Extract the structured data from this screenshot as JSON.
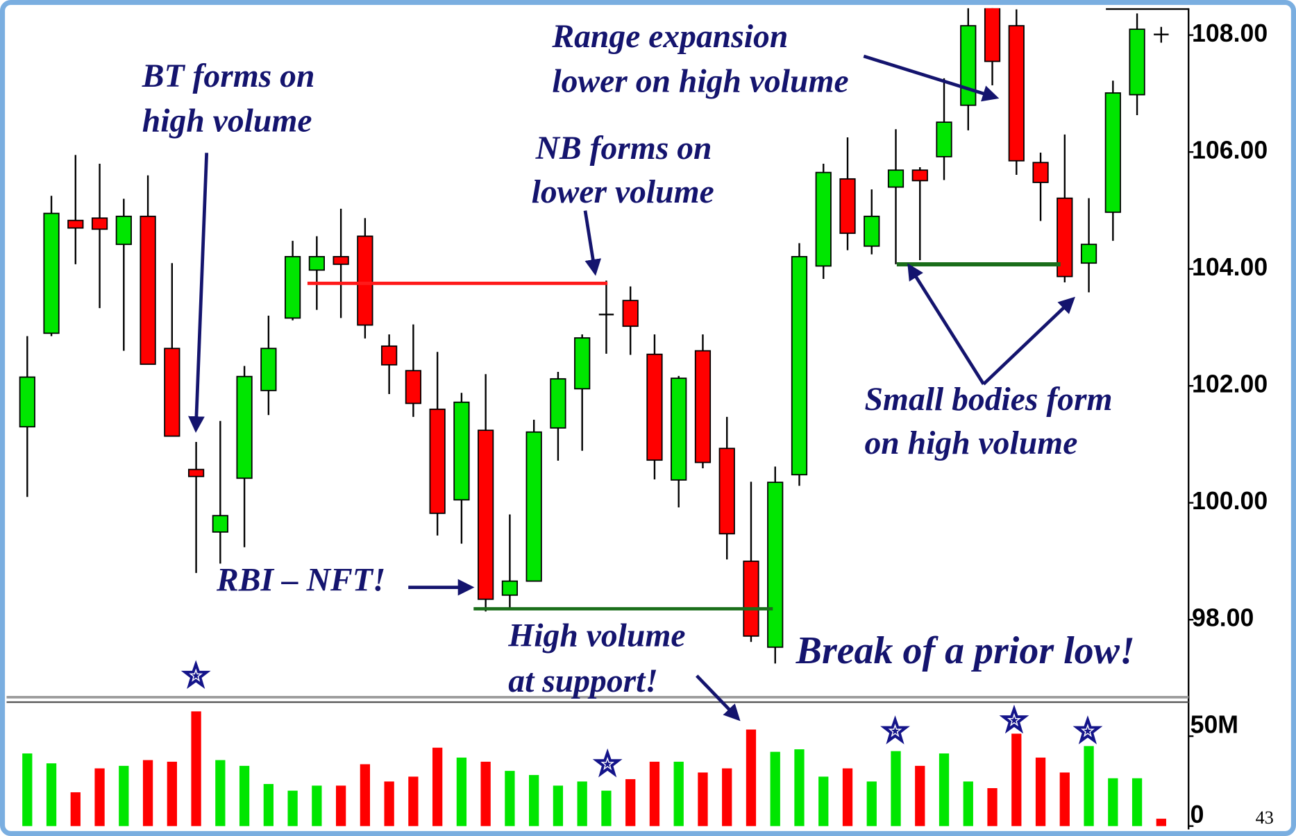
{
  "chart_data": {
    "type": "candlestick",
    "open": [
      101.3,
      102.9,
      104.83,
      104.87,
      104.42,
      104.9,
      102.64,
      100.57,
      99.5,
      100.42,
      101.92,
      103.16,
      103.98,
      104.21,
      104.56,
      102.68,
      102.26,
      101.6,
      100.05,
      101.24,
      98.42,
      98.66,
      101.28,
      101.95,
      103.22,
      103.46,
      102.54,
      100.39,
      102.6,
      100.93,
      99.0,
      97.53,
      100.48,
      104.05,
      105.54,
      104.39,
      105.4,
      105.69,
      105.92,
      106.8,
      108.47,
      108.16,
      105.82,
      105.21,
      104.1,
      104.97,
      106.98,
      108.01
    ],
    "high": [
      102.85,
      105.25,
      105.95,
      105.8,
      105.2,
      105.6,
      104.1,
      101.04,
      101.4,
      102.34,
      103.2,
      104.48,
      104.56,
      105.03,
      104.87,
      102.88,
      103.05,
      102.58,
      101.88,
      102.2,
      99.8,
      101.42,
      102.24,
      102.88,
      103.8,
      103.7,
      102.88,
      102.17,
      102.88,
      101.47,
      100.36,
      100.62,
      104.44,
      105.8,
      106.25,
      105.36,
      106.39,
      105.74,
      107.26,
      108.47,
      108.55,
      108.44,
      105.99,
      106.3,
      105.21,
      107.22,
      108.37,
      108.14
    ],
    "low": [
      100.1,
      102.85,
      104.08,
      103.33,
      102.6,
      102.37,
      101.14,
      98.8,
      98.96,
      99.24,
      101.5,
      103.12,
      103.3,
      103.16,
      102.81,
      101.86,
      101.47,
      99.44,
      99.3,
      98.14,
      98.21,
      98.66,
      100.72,
      100.89,
      102.55,
      102.53,
      100.4,
      99.92,
      100.59,
      99.03,
      97.62,
      97.25,
      100.29,
      103.83,
      104.32,
      104.25,
      104.08,
      104.15,
      105.52,
      106.37,
      107.14,
      105.61,
      104.82,
      103.77,
      103.6,
      104.48,
      106.63,
      107.87
    ],
    "close": [
      102.15,
      104.95,
      104.7,
      104.68,
      104.9,
      102.37,
      101.14,
      100.45,
      99.78,
      102.16,
      102.64,
      104.21,
      104.21,
      104.08,
      103.04,
      102.36,
      101.7,
      99.82,
      101.72,
      98.35,
      98.66,
      101.21,
      102.12,
      102.82,
      103.22,
      103.02,
      100.73,
      102.13,
      100.69,
      99.47,
      97.72,
      100.35,
      104.21,
      105.65,
      104.61,
      104.9,
      105.69,
      105.51,
      106.51,
      108.16,
      107.55,
      105.85,
      105.48,
      103.87,
      104.42,
      107.01,
      108.1,
      108.01
    ],
    "up_color": "#00e600",
    "down_color": "#ff0000",
    "ylim": [
      96.66,
      108.6
    ],
    "yticks": [
      {
        "value": 98,
        "label": "98.00"
      },
      {
        "value": 100,
        "label": "100.00"
      },
      {
        "value": 102,
        "label": "102.00"
      },
      {
        "value": 104,
        "label": "104.00"
      },
      {
        "value": 106,
        "label": "106.00"
      },
      {
        "value": 108,
        "label": "108.00"
      }
    ],
    "volume": {
      "values": [
        40.4,
        34.9,
        18.8,
        32.1,
        33.5,
        36.7,
        35.8,
        63.8,
        36.7,
        33.5,
        23.4,
        19.7,
        22.5,
        22.5,
        34.4,
        24.8,
        27.5,
        43.6,
        38.1,
        35.8,
        30.7,
        28.4,
        22.5,
        24.8,
        19.7,
        26.1,
        35.8,
        35.8,
        29.8,
        32.1,
        53.7,
        41.3,
        42.7,
        27.5,
        32.1,
        24.8,
        41.7,
        33.5,
        40.4,
        24.8,
        21.1,
        51.4,
        38.1,
        29.8,
        44.5,
        26.6,
        26.6,
        4.1
      ],
      "ylim": [
        0,
        68
      ],
      "yticks": [
        0,
        {
          "value": 50,
          "label": "50M"
        }
      ]
    },
    "annotations": [
      "BT forms on",
      "high volume",
      "Range expansion",
      "lower on high volume",
      "NB forms on",
      "lower volume",
      "RBI – NFT!",
      "High volume",
      "at support!",
      "Break of a prior low!",
      "Small bodies form",
      "on high volume"
    ],
    "page_number": "43"
  }
}
